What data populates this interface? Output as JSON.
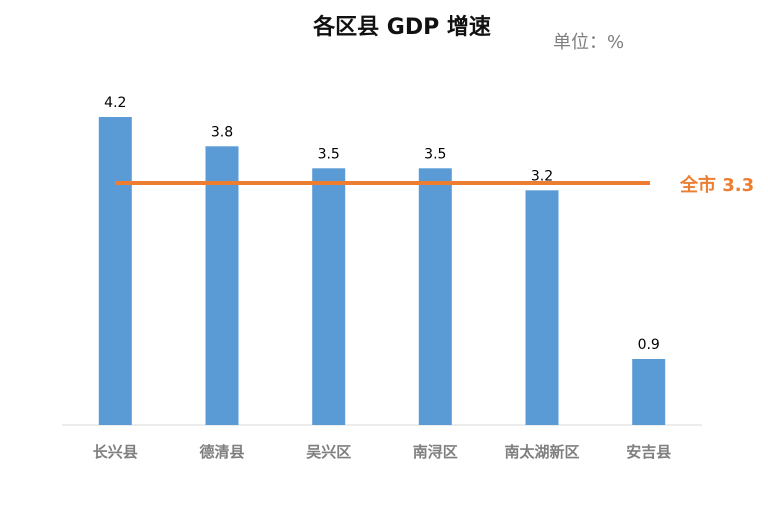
{
  "chart_data": {
    "type": "bar",
    "title": "各区县 GDP 增速",
    "unit": "单位：%",
    "categories": [
      "长兴县",
      "德清县",
      "吴兴区",
      "南浔区",
      "南太湖新区",
      "安吉县"
    ],
    "values": [
      4.2,
      3.8,
      3.5,
      3.5,
      3.2,
      0.9
    ],
    "data_labels": [
      "4.2",
      "3.8",
      "3.5",
      "3.5",
      "3.2",
      "0.9"
    ],
    "ylim": [
      0,
      4.2
    ],
    "grid": false,
    "legend": "none",
    "reference_line": {
      "label": "全市 3.3",
      "value": 3.3
    },
    "colors": {
      "bar": "#5b9bd5",
      "reference": "#ed7d31",
      "axis": "#d9d9d9"
    }
  }
}
